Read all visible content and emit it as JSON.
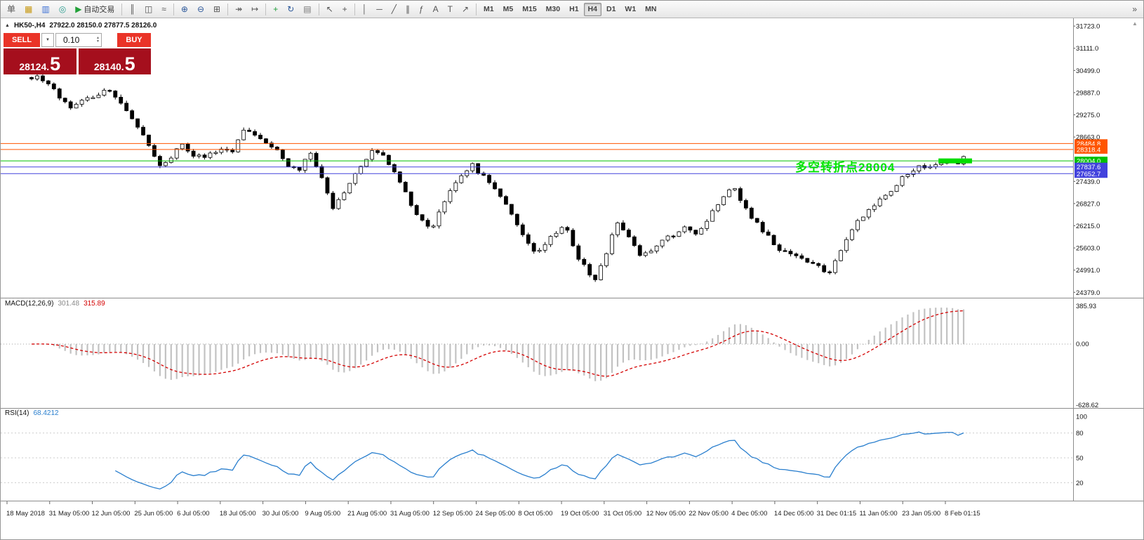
{
  "toolbar": {
    "timeframes": [
      "M1",
      "M5",
      "M15",
      "M30",
      "H1",
      "H4",
      "D1",
      "W1",
      "MN"
    ],
    "active_timeframe": "H4",
    "items": [
      {
        "name": "new-order-button",
        "icon": "order-icon",
        "glyph": "单"
      },
      {
        "name": "market-watch-button",
        "icon": "market-watch-icon",
        "glyph": "▦",
        "color": "#c79810"
      },
      {
        "name": "navigator-button",
        "icon": "navigator-icon",
        "glyph": "▥",
        "color": "#3b6fd4"
      },
      {
        "name": "terminal-button",
        "icon": "terminal-icon",
        "glyph": "◎",
        "color": "#2a9d8f"
      },
      {
        "name": "autotrading-button",
        "icon": "play-icon",
        "glyph": "▶",
        "label": "自动交易",
        "color": "#21a038"
      },
      {
        "sep": true
      },
      {
        "name": "bar-chart-button",
        "icon": "bar-chart-icon",
        "glyph": "║"
      },
      {
        "name": "candlestick-chart-button",
        "icon": "candlestick-icon",
        "glyph": "◫"
      },
      {
        "name": "line-chart-button",
        "icon": "line-chart-icon",
        "glyph": "≈"
      },
      {
        "sep": true
      },
      {
        "name": "zoom-in-button",
        "icon": "zoom-in-icon",
        "glyph": "⊕",
        "color": "#2b579a"
      },
      {
        "name": "zoom-out-button",
        "icon": "zoom-out-icon",
        "glyph": "⊖",
        "color": "#2b579a"
      },
      {
        "name": "tile-windows-button",
        "icon": "tile-windows-icon",
        "glyph": "⊞"
      },
      {
        "sep": true
      },
      {
        "name": "auto-scroll-button",
        "icon": "auto-scroll-icon",
        "glyph": "↠"
      },
      {
        "name": "chart-shift-button",
        "icon": "chart-shift-icon",
        "glyph": "↦"
      },
      {
        "sep": true
      },
      {
        "name": "indicators-button",
        "icon": "indicators-icon",
        "glyph": "+",
        "color": "#1f9d3a"
      },
      {
        "name": "periods-button",
        "icon": "periods-icon",
        "glyph": "↻",
        "color": "#2b579a"
      },
      {
        "name": "templates-button",
        "icon": "templates-icon",
        "glyph": "▤",
        "color": "#777777"
      },
      {
        "sep": true
      },
      {
        "name": "cursor-button",
        "icon": "cursor-icon",
        "glyph": "↖"
      },
      {
        "name": "crosshair-button",
        "icon": "crosshair-icon",
        "glyph": "+"
      },
      {
        "sep": true
      },
      {
        "name": "vertical-line-button",
        "icon": "vertical-line-icon",
        "glyph": "│"
      },
      {
        "name": "horizontal-line-button",
        "icon": "horizontal-line-icon",
        "glyph": "─"
      },
      {
        "name": "trendline-button",
        "icon": "trendline-icon",
        "glyph": "╱"
      },
      {
        "name": "channel-button",
        "icon": "channel-icon",
        "glyph": "∥"
      },
      {
        "name": "fibonacci-button",
        "icon": "fibonacci-icon",
        "glyph": "ƒ"
      },
      {
        "name": "text-button",
        "icon": "text-icon",
        "glyph": "A"
      },
      {
        "name": "label-button",
        "icon": "label-icon",
        "glyph": "T"
      },
      {
        "name": "arrows-button",
        "icon": "arrow-icon",
        "glyph": "↗"
      },
      {
        "sep": true
      },
      {
        "tf_group": true
      },
      {
        "name": "toolbar-overflow-button",
        "icon": "overflow-icon",
        "glyph": "»",
        "right": true
      }
    ]
  },
  "chart_header": {
    "symbol": "HK50-,H4",
    "ohlc": "27922.0 28150.0 27877.5 28126.0"
  },
  "trade_panel": {
    "sell_label": "SELL",
    "buy_label": "BUY",
    "volume": "0.10",
    "sell_price_main": "28124.",
    "sell_price_big": "5",
    "buy_price_main": "28140.",
    "buy_price_big": "5"
  },
  "annotation": {
    "text": "多空转折点28004",
    "color": "#00e400"
  },
  "chart_data": [
    {
      "type": "candlestick",
      "symbol": "HK50-",
      "timeframe": "H4",
      "open": 27922.0,
      "high": 28150.0,
      "low": 27877.5,
      "close": 28126.0,
      "bid": 28124.5,
      "ask": 28140.5,
      "y_ticks": [
        31723.0,
        31111.0,
        30499.0,
        29887.0,
        29275.0,
        28663.0,
        27439.0,
        26827.0,
        26215.0,
        25603.0,
        24991.0,
        24379.0
      ],
      "hlines": [
        {
          "price": 28484.8,
          "label": "28484.8",
          "color": "#ff5500"
        },
        {
          "price": 28318.4,
          "label": "28318.4",
          "color": "#ff5500"
        },
        {
          "price": 28004.0,
          "label": "28004.0",
          "color": "#00c000"
        },
        {
          "price": 27837.6,
          "label": "27837.6",
          "color": "#4242dd"
        },
        {
          "price": 27652.7,
          "label": "27652.7",
          "color": "#4242dd"
        }
      ],
      "highlight_zone": {
        "price": 28004.0,
        "from_candle": 163,
        "to_candle": 168,
        "color": "#00dd00"
      },
      "num_candles": 168,
      "price_path_anchors": [
        [
          0.0,
          30350
        ],
        [
          0.018,
          30150
        ],
        [
          0.04,
          29480
        ],
        [
          0.06,
          29750
        ],
        [
          0.083,
          29980
        ],
        [
          0.1,
          29400
        ],
        [
          0.118,
          28850
        ],
        [
          0.139,
          27780
        ],
        [
          0.15,
          28120
        ],
        [
          0.158,
          28520
        ],
        [
          0.172,
          28200
        ],
        [
          0.185,
          28060
        ],
        [
          0.2,
          28320
        ],
        [
          0.215,
          28180
        ],
        [
          0.229,
          28930
        ],
        [
          0.245,
          28560
        ],
        [
          0.262,
          28320
        ],
        [
          0.285,
          27660
        ],
        [
          0.298,
          28230
        ],
        [
          0.31,
          27600
        ],
        [
          0.323,
          26680
        ],
        [
          0.34,
          27350
        ],
        [
          0.355,
          27860
        ],
        [
          0.368,
          28340
        ],
        [
          0.382,
          27980
        ],
        [
          0.395,
          27480
        ],
        [
          0.41,
          26700
        ],
        [
          0.428,
          26080
        ],
        [
          0.443,
          26900
        ],
        [
          0.458,
          27480
        ],
        [
          0.473,
          27910
        ],
        [
          0.488,
          27460
        ],
        [
          0.503,
          27060
        ],
        [
          0.52,
          26280
        ],
        [
          0.541,
          25380
        ],
        [
          0.556,
          25850
        ],
        [
          0.572,
          26230
        ],
        [
          0.588,
          25250
        ],
        [
          0.604,
          24720
        ],
        [
          0.616,
          25300
        ],
        [
          0.627,
          26380
        ],
        [
          0.64,
          25900
        ],
        [
          0.654,
          25350
        ],
        [
          0.668,
          25600
        ],
        [
          0.682,
          25900
        ],
        [
          0.7,
          26120
        ],
        [
          0.716,
          25980
        ],
        [
          0.733,
          26650
        ],
        [
          0.751,
          27380
        ],
        [
          0.765,
          26700
        ],
        [
          0.78,
          26240
        ],
        [
          0.8,
          25600
        ],
        [
          0.82,
          25400
        ],
        [
          0.838,
          25150
        ],
        [
          0.856,
          24920
        ],
        [
          0.87,
          25650
        ],
        [
          0.886,
          26350
        ],
        [
          0.9,
          26700
        ],
        [
          0.917,
          27050
        ],
        [
          0.93,
          27420
        ],
        [
          0.942,
          27720
        ],
        [
          0.955,
          27880
        ],
        [
          0.968,
          27820
        ],
        [
          0.98,
          27930
        ],
        [
          0.99,
          27960
        ],
        [
          1.0,
          28126
        ]
      ]
    },
    {
      "type": "macd",
      "label": "MACD(12,26,9)",
      "main_value": "301.48",
      "signal_value": "315.89",
      "params": [
        12,
        26,
        9
      ],
      "axis_labels": [
        "385.93",
        "0.00",
        "-628.62"
      ],
      "axis_values": [
        385.93,
        0.0,
        -628.62
      ],
      "histogram_color": "#c2c2c2",
      "signal_color": "#d40000"
    },
    {
      "type": "rsi",
      "label": "RSI(14)",
      "value": "68.4212",
      "period": 14,
      "levels": [
        80,
        50,
        20
      ],
      "axis_labels": [
        "100",
        "80",
        "50",
        "20"
      ],
      "axis_values": [
        100,
        80,
        50,
        20
      ],
      "line_color": "#2a7fce"
    }
  ],
  "time_axis": {
    "labels": [
      "18 May 2018",
      "31 May 05:00",
      "12 Jun 05:00",
      "25 Jun 05:00",
      "6 Jul 05:00",
      "18 Jul 05:00",
      "30 Jul 05:00",
      "9 Aug 05:00",
      "21 Aug 05:00",
      "31 Aug 05:00",
      "12 Sep 05:00",
      "24 Sep 05:00",
      "8 Oct 05:00",
      "19 Oct 05:00",
      "31 Oct 05:00",
      "12 Nov 05:00",
      "22 Nov 05:00",
      "4 Dec 05:00",
      "14 Dec 05:00",
      "31 Dec 01:15",
      "11 Jan 05:00",
      "23 Jan 05:00",
      "8 Feb 01:15"
    ]
  }
}
